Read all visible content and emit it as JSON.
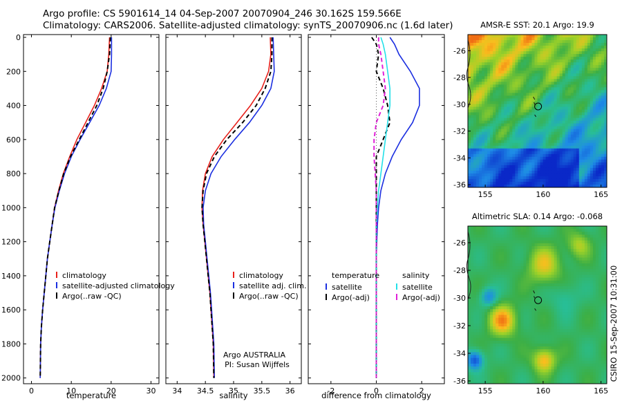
{
  "header": {
    "line1": "Argo profile: CS 5901614_14 04-Sep-2007 20070904_246 30.162S 159.566E",
    "line2": "Climatology: CARS2006. Satellite-adjusted climatology: synTS_20070906.nc (1.6d later)"
  },
  "stamp": "CSIRO 15-Sep-2007 10:31:00",
  "colors": {
    "climatology": "#e8201a",
    "satellite": "#1a2ee0",
    "argo": "#000000",
    "salinity_satellite": "#22e0e8",
    "salinity_argo": "#e020d8"
  },
  "chart_data": [
    {
      "type": "line",
      "xlabel": "temperature",
      "ylabel": "",
      "xlim": [
        -2,
        32
      ],
      "ylim": [
        2050,
        0
      ],
      "xticks": [
        "0",
        "10",
        "20",
        "30"
      ],
      "yticks": [
        "0",
        "200",
        "400",
        "600",
        "800",
        "1000",
        "1200",
        "1400",
        "1600",
        "1800",
        "2000"
      ],
      "legend": [
        "climatology",
        "satellite-adjusted climatology",
        "Argo(..raw -QC)"
      ],
      "series": [
        {
          "name": "climatology",
          "style": "solid",
          "color": "#e8201a",
          "x": [
            19.6,
            19.4,
            19.0,
            17.6,
            15.8,
            13.6,
            11.4,
            9.6,
            8.0,
            6.8,
            5.8,
            5.2,
            4.6,
            4.0,
            3.6,
            3.2,
            2.8,
            2.5,
            2.3,
            2.2
          ],
          "y": [
            0,
            100,
            200,
            300,
            400,
            500,
            600,
            700,
            800,
            900,
            1000,
            1100,
            1200,
            1300,
            1400,
            1500,
            1600,
            1700,
            1800,
            2000
          ]
        },
        {
          "name": "satellite-adjusted climatology",
          "style": "solid",
          "color": "#1a2ee0",
          "x": [
            20.1,
            20.1,
            20.0,
            18.8,
            17.0,
            14.6,
            12.2,
            10.0,
            8.3,
            7.0,
            5.9,
            5.2,
            4.6,
            4.0,
            3.6,
            3.2,
            2.8,
            2.5,
            2.3,
            2.2
          ],
          "y": [
            0,
            100,
            200,
            300,
            400,
            500,
            600,
            700,
            800,
            900,
            1000,
            1100,
            1200,
            1300,
            1400,
            1500,
            1600,
            1700,
            1800,
            2000
          ]
        },
        {
          "name": "Argo(..raw -QC)",
          "style": "dashed",
          "color": "#000000",
          "x": [
            19.8,
            19.6,
            19.0,
            18.0,
            16.4,
            14.2,
            12.0,
            9.8,
            8.1,
            6.9,
            5.8,
            5.2,
            4.6,
            4.0,
            3.6,
            3.2,
            2.8,
            2.5,
            2.3,
            2.2
          ],
          "y": [
            0,
            100,
            200,
            300,
            400,
            500,
            600,
            700,
            800,
            900,
            1000,
            1100,
            1200,
            1300,
            1400,
            1500,
            1600,
            1700,
            1800,
            2000
          ]
        }
      ]
    },
    {
      "type": "line",
      "xlabel": "salinity",
      "ylabel": "",
      "xlim": [
        33.8,
        36.2
      ],
      "ylim": [
        2050,
        0
      ],
      "xticks": [
        "34",
        "34.5",
        "35",
        "35.5",
        "36"
      ],
      "legend": [
        "climatology",
        "satellite adj. clim.",
        "Argo(..raw -QC)"
      ],
      "annotation": [
        "Argo AUSTRALIA",
        "PI: Susan Wijffels"
      ],
      "series": [
        {
          "name": "climatology",
          "style": "solid",
          "color": "#e8201a",
          "x": [
            35.65,
            35.66,
            35.62,
            35.5,
            35.3,
            35.06,
            34.82,
            34.62,
            34.5,
            34.45,
            34.44,
            34.46,
            34.49,
            34.52,
            34.55,
            34.58,
            34.6,
            34.62,
            34.64,
            34.65
          ],
          "y": [
            0,
            100,
            200,
            300,
            400,
            500,
            600,
            700,
            800,
            900,
            1000,
            1100,
            1200,
            1300,
            1400,
            1500,
            1600,
            1700,
            1800,
            2000
          ]
        },
        {
          "name": "satellite adj. clim.",
          "style": "solid",
          "color": "#1a2ee0",
          "x": [
            35.7,
            35.71,
            35.72,
            35.66,
            35.5,
            35.28,
            35.02,
            34.78,
            34.6,
            34.5,
            34.46,
            34.47,
            34.5,
            34.53,
            34.56,
            34.59,
            34.61,
            34.63,
            34.65,
            34.66
          ],
          "y": [
            0,
            100,
            200,
            300,
            400,
            500,
            600,
            700,
            800,
            900,
            1000,
            1100,
            1200,
            1300,
            1400,
            1500,
            1600,
            1700,
            1800,
            2000
          ]
        },
        {
          "name": "Argo(..raw -QC)",
          "style": "dashed",
          "color": "#000000",
          "x": [
            35.68,
            35.68,
            35.66,
            35.56,
            35.4,
            35.16,
            34.88,
            34.66,
            34.52,
            34.46,
            34.44,
            34.46,
            34.49,
            34.52,
            34.55,
            34.58,
            34.6,
            34.62,
            34.64,
            34.65
          ],
          "y": [
            0,
            100,
            200,
            300,
            400,
            500,
            600,
            700,
            800,
            900,
            1000,
            1100,
            1200,
            1300,
            1400,
            1500,
            1600,
            1700,
            1800,
            2000
          ]
        }
      ]
    },
    {
      "type": "line",
      "xlabel": "difference from climatology",
      "ylabel": "",
      "xlim": [
        -3,
        3
      ],
      "ylim": [
        2050,
        0
      ],
      "xticks": [
        "-2",
        "0",
        "2"
      ],
      "legend_temperature": {
        "header": "temperature",
        "entries": [
          "satellite",
          "Argo(-adj)"
        ]
      },
      "legend_salinity": {
        "header": "salinity",
        "entries": [
          "satellite",
          "Argo(-adj)"
        ]
      },
      "series": [
        {
          "name": "satellite",
          "group": "temperature",
          "style": "solid",
          "color": "#1a2ee0",
          "x": [
            0.6,
            0.8,
            1.0,
            1.5,
            1.9,
            1.9,
            1.6,
            1.1,
            0.7,
            0.4,
            0.2,
            0.1,
            0.05,
            0.02,
            0.0,
            0.0,
            0.0,
            0.0,
            0.0,
            0.0
          ],
          "y": [
            0,
            40,
            100,
            200,
            300,
            400,
            500,
            600,
            700,
            800,
            900,
            1000,
            1100,
            1200,
            1300,
            1500,
            1600,
            1700,
            1800,
            2000
          ]
        },
        {
          "name": "Argo(-adj)",
          "group": "temperature",
          "style": "dashed",
          "color": "#000000",
          "x": [
            -0.2,
            0.0,
            0.1,
            0.0,
            0.3,
            0.5,
            0.6,
            0.3,
            0.0,
            0.0,
            0.0,
            0.0,
            0.0,
            0.0,
            0.0,
            0.0,
            0.0,
            0.0,
            0.0,
            0.0
          ],
          "y": [
            0,
            40,
            100,
            200,
            300,
            400,
            500,
            600,
            700,
            800,
            900,
            1000,
            1100,
            1200,
            1300,
            1500,
            1600,
            1700,
            1800,
            2000
          ]
        },
        {
          "name": "satellite",
          "group": "salinity",
          "style": "solid",
          "color": "#22e0e8",
          "x": [
            0.2,
            0.3,
            0.4,
            0.5,
            0.6,
            0.6,
            0.5,
            0.4,
            0.3,
            0.2,
            0.1,
            0.05,
            0.0,
            0.0,
            0.0,
            0.0,
            0.0,
            0.0,
            0.0,
            0.0
          ],
          "y": [
            0,
            40,
            100,
            200,
            300,
            400,
            500,
            600,
            700,
            800,
            900,
            1000,
            1100,
            1200,
            1300,
            1500,
            1600,
            1700,
            1800,
            2000
          ]
        },
        {
          "name": "Argo(-adj)",
          "group": "salinity",
          "style": "dashed",
          "color": "#e020d8",
          "x": [
            0.1,
            0.1,
            0.2,
            0.3,
            0.4,
            0.3,
            0.0,
            -0.1,
            -0.1,
            -0.05,
            0.0,
            0.0,
            0.0,
            0.0,
            0.0,
            0.0,
            0.0,
            0.0,
            0.0,
            0.0
          ],
          "y": [
            0,
            40,
            100,
            200,
            300,
            400,
            500,
            600,
            700,
            800,
            900,
            1000,
            1100,
            1200,
            1300,
            1500,
            1600,
            1700,
            1800,
            2000
          ]
        }
      ]
    },
    {
      "type": "heatmap",
      "title": "AMSR-E SST: 20.1 Argo: 19.9",
      "xlim": [
        153.5,
        165.5
      ],
      "ylim": [
        -36.2,
        -24.8
      ],
      "xticks": [
        "155",
        "160",
        "165"
      ],
      "yticks": [
        "-26",
        "-28",
        "-30",
        "-32",
        "-34",
        "-36"
      ],
      "marker": {
        "lon": 159.566,
        "lat": -30.162
      },
      "field": "sst"
    },
    {
      "type": "heatmap",
      "title": "Altimetric SLA: 0.14 Argo: -0.068",
      "xlim": [
        153.5,
        165.5
      ],
      "ylim": [
        -36.2,
        -24.8
      ],
      "xticks": [
        "155",
        "160",
        "165"
      ],
      "yticks": [
        "-26",
        "-28",
        "-30",
        "-32",
        "-34",
        "-36"
      ],
      "marker": {
        "lon": 159.566,
        "lat": -30.162
      },
      "field": "sla"
    }
  ]
}
